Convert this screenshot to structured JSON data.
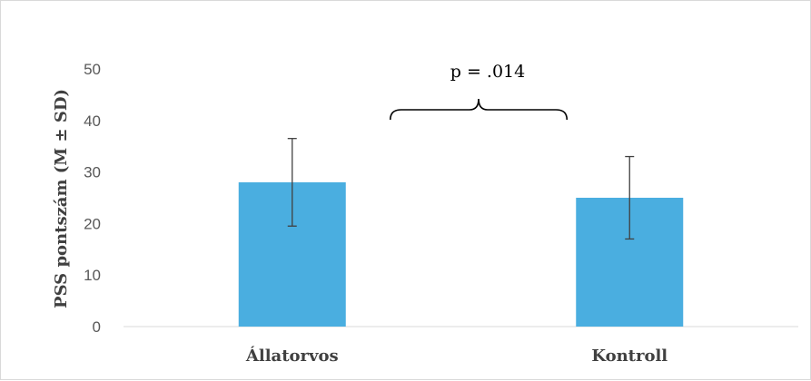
{
  "chart_data": {
    "type": "bar",
    "categories": [
      "Állatorvos",
      "Kontroll"
    ],
    "values": [
      28,
      25
    ],
    "error": [
      8.5,
      8
    ],
    "ylabel": "PSS pontszám (M ± SD)",
    "xlabel": "",
    "ylim": [
      0,
      50
    ],
    "yticks": [
      0,
      10,
      20,
      30,
      40,
      50
    ],
    "annotation": "p = .014",
    "bar_color": "#4aaee0",
    "grid": false
  }
}
